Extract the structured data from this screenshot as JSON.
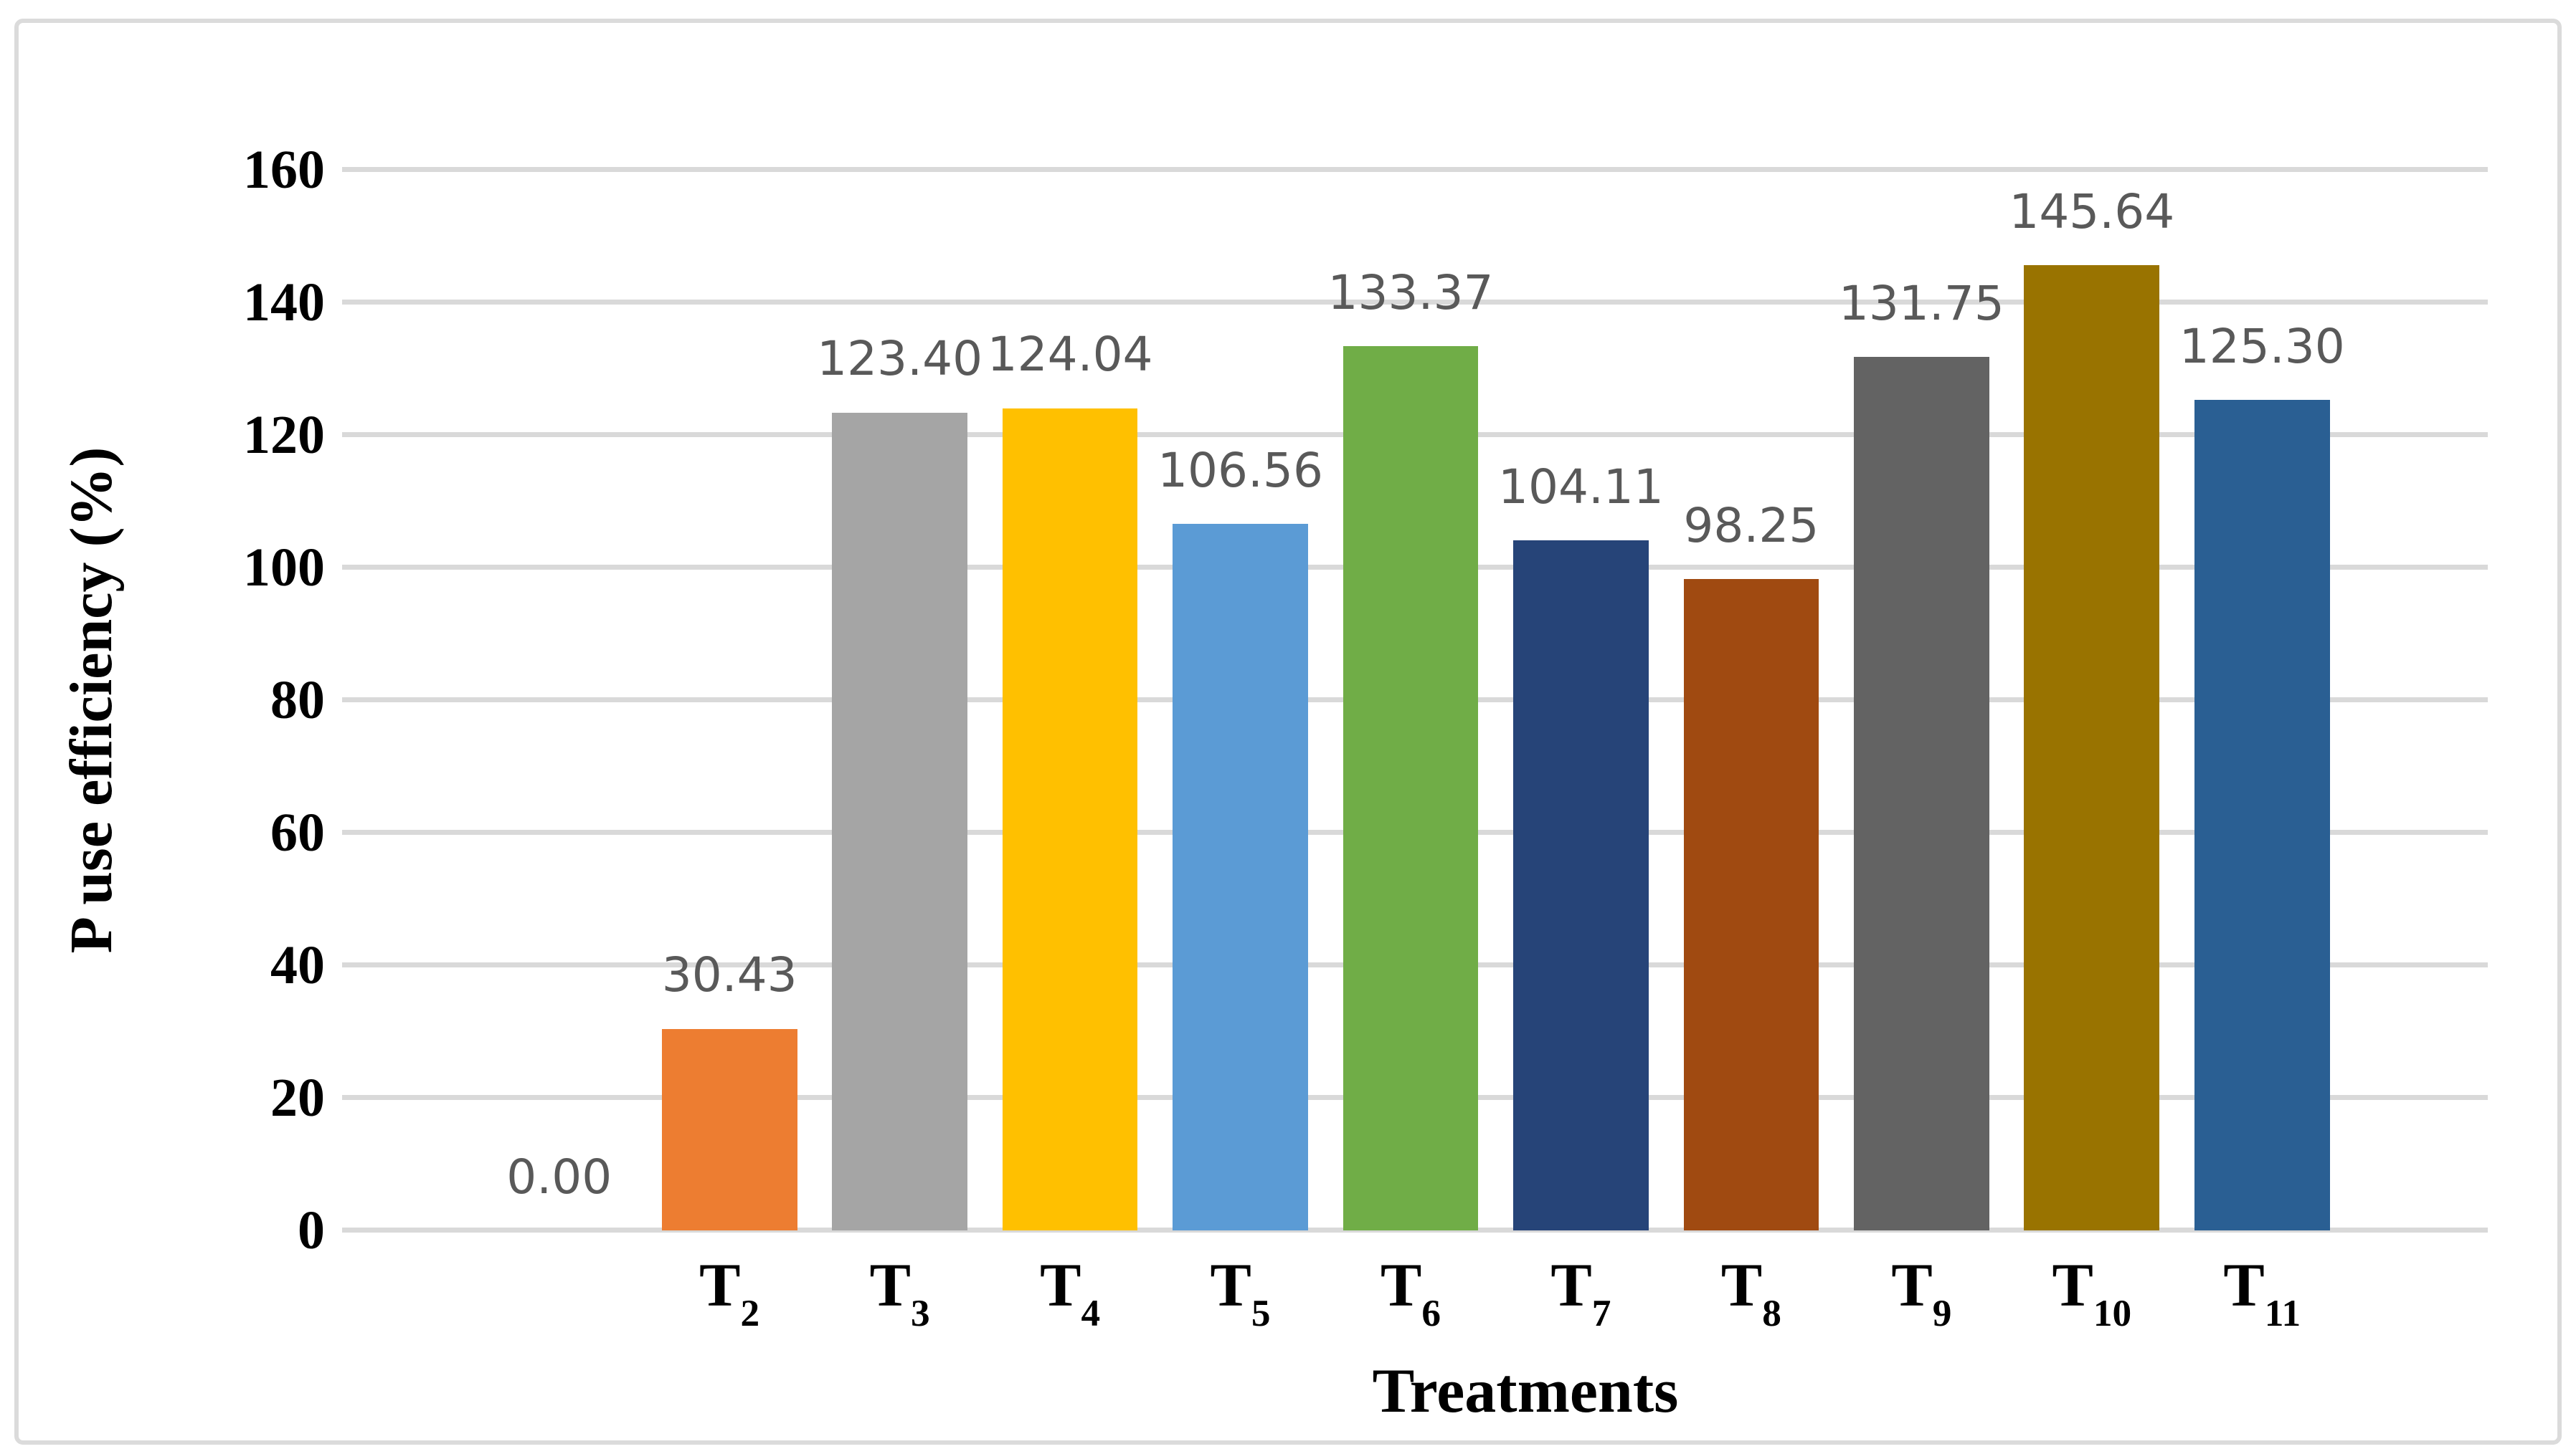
{
  "figure": {
    "background": "#FFFFFF",
    "border_color": "#DBDBDB"
  },
  "chart_data": {
    "type": "bar",
    "title": "",
    "xlabel": "Treatments",
    "ylabel": "P use efficiency (%)",
    "categories": [
      "",
      "T2",
      "T3",
      "T4",
      "T5",
      "T6",
      "T7",
      "T8",
      "T9",
      "T10",
      "T11"
    ],
    "values": [
      0.0,
      30.43,
      123.4,
      124.04,
      106.56,
      133.37,
      104.11,
      98.25,
      131.75,
      145.64,
      125.3
    ],
    "value_labels": [
      "0.00",
      "30.43",
      "123.40",
      "124.04",
      "106.56",
      "133.37",
      "104.11",
      "98.25",
      "131.75",
      "145.64",
      "125.30"
    ],
    "colors": [
      "#4472C4",
      "#ED7D31",
      "#A5A5A5",
      "#FFC000",
      "#5B9BD5",
      "#70AD47",
      "#264478",
      "#A04A11",
      "#636363",
      "#997300",
      "#2A5F93"
    ],
    "yticks": [
      0,
      20,
      40,
      60,
      80,
      100,
      120,
      140,
      160
    ],
    "ylim": [
      0,
      160
    ],
    "grid": "horizontal",
    "gridline_color": "#D9D9D9",
    "legend": "none",
    "data_label_color": "#595959"
  }
}
